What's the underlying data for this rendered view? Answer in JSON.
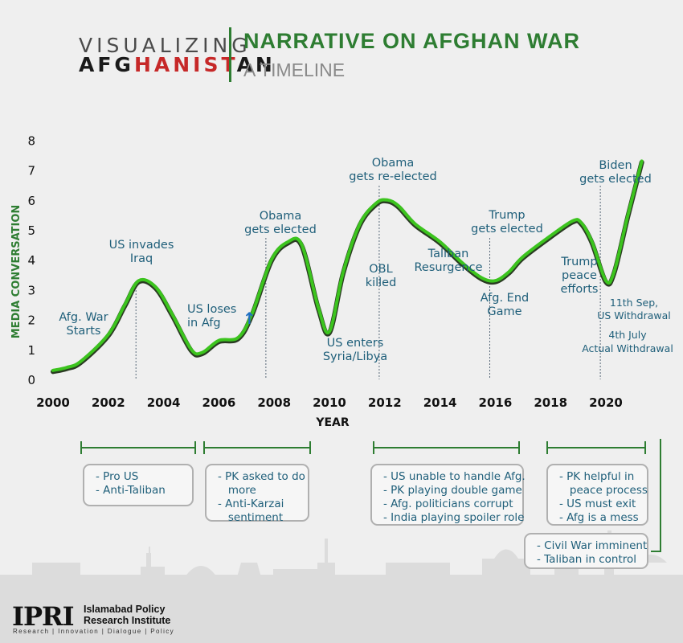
{
  "header": {
    "brand_line1": "VISUALIZING",
    "brand_line2_dark1": "AFG",
    "brand_line2_red": "HANIST",
    "brand_line2_dark2": "AN",
    "title": "NARRATIVE ON AFGHAN WAR",
    "subtitle": "A TIMELINE"
  },
  "colors": {
    "accent_green": "#2e7d32",
    "curve": "#3cc41e",
    "text_blue": "#1f5f7a",
    "red": "#c62828"
  },
  "chart_data": {
    "type": "line",
    "title": "NARRATIVE ON AFGHAN WAR",
    "subtitle": "A TIMELINE",
    "xlabel": "YEAR",
    "ylabel": "MEDIA CONVERSATION",
    "xlim": [
      2000,
      2021.6
    ],
    "ylim": [
      0,
      8
    ],
    "xticks": [
      "2000",
      "2002",
      "2004",
      "2006",
      "2008",
      "2010",
      "2012",
      "2014",
      "2016",
      "2018",
      "2020"
    ],
    "yticks": [
      "0",
      "1",
      "2",
      "3",
      "4",
      "5",
      "6",
      "7",
      "8"
    ],
    "grid": false,
    "series": [
      {
        "x": [
          2000,
          2000.5,
          2001,
          2002,
          2002.6,
          2003.1,
          2003.7,
          2004.3,
          2005,
          2005.4,
          2006,
          2006.7,
          2007.2,
          2007.9,
          2008.5,
          2009,
          2009.6,
          2010,
          2010.5,
          2011.1,
          2011.7,
          2012.1,
          2012.5,
          2013.1,
          2014,
          2014.8,
          2015.5,
          2016,
          2016.5,
          2017,
          2018,
          2018.8,
          2019.1,
          2019.5,
          2020,
          2020.3,
          2020.8,
          2021.3
        ],
        "y": [
          0.3,
          0.4,
          0.6,
          1.5,
          2.5,
          3.3,
          3.1,
          2.2,
          1.0,
          0.9,
          1.3,
          1.4,
          2.2,
          4.0,
          4.6,
          4.5,
          2.4,
          1.6,
          3.6,
          5.2,
          5.9,
          6.0,
          5.8,
          5.2,
          4.6,
          3.9,
          3.4,
          3.3,
          3.6,
          4.1,
          4.8,
          5.3,
          5.25,
          4.6,
          3.3,
          3.6,
          5.5,
          7.3
        ]
      }
    ],
    "annotations": [
      {
        "year": 2003,
        "lines": [
          "US invades",
          "Iraq"
        ]
      },
      {
        "year": 2007.7,
        "lines": [
          "Obama",
          "gets elected"
        ]
      },
      {
        "year": 2011.8,
        "lines": [
          "Obama",
          "gets re-elected"
        ]
      },
      {
        "year": 2015.8,
        "lines": [
          "Trump",
          "gets elected"
        ]
      },
      {
        "year": 2019.8,
        "lines": [
          "Biden",
          "gets elected"
        ]
      },
      {
        "year": 2000.9,
        "lines": [
          "Afg. War",
          "Starts"
        ]
      },
      {
        "year": 2005.9,
        "lines": [
          "US loses",
          "in Afg"
        ],
        "arrow": "↑"
      },
      {
        "year": 2010.2,
        "lines": [
          "US enters",
          "Syria/Libya"
        ]
      },
      {
        "year": 2011.4,
        "lines": [
          "OBL",
          "killed"
        ]
      },
      {
        "year": 2013.8,
        "lines": [
          "Taliban",
          "Resurgence"
        ]
      },
      {
        "year": 2015.9,
        "lines": [
          "Afg. End",
          "Game"
        ]
      },
      {
        "year": 2018.1,
        "lines": [
          "Trump",
          "peace",
          "efforts"
        ]
      },
      {
        "year": 2020.6,
        "lines": [
          "11th Sep,",
          "US Withdrawal"
        ]
      },
      {
        "year": 2020.6,
        "lines": [
          "4th July",
          "Actual Withdrawal"
        ]
      }
    ]
  },
  "notes": [
    {
      "lines": [
        "- Pro US",
        "- Anti-Taliban"
      ]
    },
    {
      "lines": [
        "- PK asked to do",
        "   more",
        "- Anti-Karzai",
        "   sentiment"
      ]
    },
    {
      "lines": [
        "- US unable to handle Afg.",
        "- PK playing double game",
        "- Afg. politicians corrupt",
        "- India playing spoiler role"
      ]
    },
    {
      "lines": [
        "- PK helpful in",
        "   peace process",
        "- US must exit",
        "- Afg is a mess"
      ]
    },
    {
      "lines": [
        "- Civil War imminent",
        "- Taliban in control"
      ]
    }
  ],
  "footer": {
    "logo": "IPRI",
    "name_line1": "Islamabad Policy",
    "name_line2": "Research Institute",
    "tagline": "Research | Innovation | Dialogue | Policy"
  }
}
